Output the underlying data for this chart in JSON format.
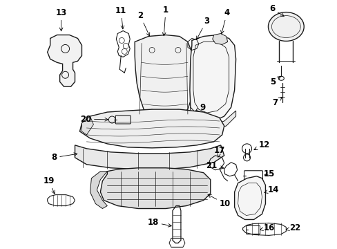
{
  "background_color": "#ffffff",
  "line_color": "#1a1a1a",
  "label_color": "#000000",
  "font_size_label": 8.5,
  "figsize": [
    4.89,
    3.6
  ],
  "dpi": 100
}
